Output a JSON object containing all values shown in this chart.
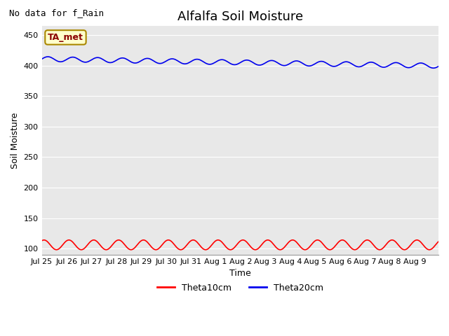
{
  "title": "Alfalfa Soil Moisture",
  "xlabel": "Time",
  "ylabel": "Soil Moisture",
  "no_data_text": "No data for f_Rain",
  "station_label": "TA_met",
  "ylim": [
    90,
    465
  ],
  "yticks": [
    100,
    150,
    200,
    250,
    300,
    350,
    400,
    450
  ],
  "blue_base": 411,
  "blue_amplitude": 4,
  "blue_trend": -11,
  "red_base": 106,
  "red_amplitude": 8,
  "n_points": 384,
  "points_per_day": 24,
  "line_color_red": "#ff0000",
  "line_color_blue": "#0000ee",
  "bg_color": "#e8e8e8",
  "fig_bg_color": "#ffffff",
  "legend_entries": [
    "Theta10cm",
    "Theta20cm"
  ],
  "legend_colors": [
    "#ff0000",
    "#0000ee"
  ],
  "title_fontsize": 13,
  "axis_label_fontsize": 9,
  "tick_fontsize": 8
}
